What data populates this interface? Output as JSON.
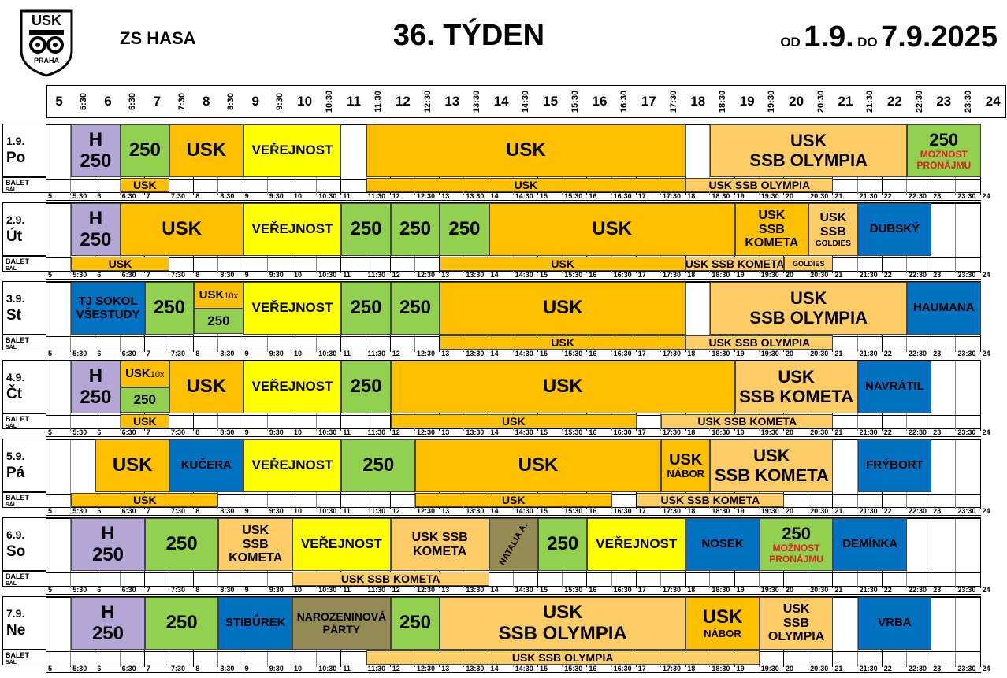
{
  "header": {
    "logo_text_top": "USK",
    "logo_text_bottom": "PRAHA",
    "club": "ZS HASA",
    "week": "36. TÝDEN",
    "range_od": "OD",
    "range_from": "1.9.",
    "range_do": "DO",
    "range_to": "7.9.2025"
  },
  "hours": [
    "5",
    "5:30",
    "6",
    "6:30",
    "7",
    "7:30",
    "8",
    "8:30",
    "9",
    "9:30",
    "10",
    "10:30",
    "11",
    "11:30",
    "12",
    "12:30",
    "13",
    "13:30",
    "14",
    "14:30",
    "15",
    "15:30",
    "16",
    "16:30",
    "17",
    "17:30",
    "18",
    "18:30",
    "19",
    "19:30",
    "20",
    "20:30",
    "21",
    "21:30",
    "22",
    "22:30",
    "23",
    "23:30",
    "24"
  ],
  "sub_label_1": "BALET",
  "sub_label_2": "SÁL",
  "colors": {
    "orange": "#ffc000",
    "light_orange": "#ffcc66",
    "yellow": "#ffff00",
    "green": "#92d050",
    "purple": "#b4a7d6",
    "blue": "#0070c0",
    "olive": "#948a54"
  },
  "days": [
    {
      "date": "1.9.",
      "name": "Po",
      "blocks": [
        {
          "s": 1,
          "e": 3,
          "c": "purple",
          "lines": [
            "H",
            "250"
          ],
          "fs": 24
        },
        {
          "s": 3,
          "e": 5,
          "c": "green",
          "lines": [
            "250"
          ],
          "fs": 24
        },
        {
          "s": 5,
          "e": 8,
          "c": "orange",
          "lines": [
            "USK"
          ],
          "fs": 24
        },
        {
          "s": 8,
          "e": 12,
          "c": "yellow",
          "lines": [
            "VEŘEJNOST"
          ],
          "fs": 17
        },
        {
          "s": 13,
          "e": 26,
          "c": "orange",
          "lines": [
            "USK"
          ],
          "fs": 24
        },
        {
          "s": 27,
          "e": 35,
          "c": "light_orange",
          "lines": [
            "USK",
            "SSB OLYMPIA"
          ],
          "fs": 22
        },
        {
          "s": 35,
          "e": 38,
          "c": "green",
          "lines": [
            "250"
          ],
          "fs": 22,
          "red": [
            "MOŽNOST",
            "PRONÁJMU"
          ]
        }
      ],
      "sub": [
        {
          "s": 3,
          "e": 5,
          "c": "orange",
          "t": "USK"
        },
        {
          "s": 13,
          "e": 26,
          "c": "orange",
          "t": "USK"
        },
        {
          "s": 26,
          "e": 32,
          "c": "light_orange",
          "t": "USK SSB OLYMPIA"
        }
      ]
    },
    {
      "date": "2.9.",
      "name": "Út",
      "blocks": [
        {
          "s": 1,
          "e": 3,
          "c": "purple",
          "lines": [
            "H",
            "250"
          ],
          "fs": 24
        },
        {
          "s": 3,
          "e": 8,
          "c": "orange",
          "lines": [
            "USK"
          ],
          "fs": 24
        },
        {
          "s": 8,
          "e": 12,
          "c": "yellow",
          "lines": [
            "VEŘEJNOST"
          ],
          "fs": 17
        },
        {
          "s": 12,
          "e": 14,
          "c": "green",
          "lines": [
            "250"
          ],
          "fs": 24
        },
        {
          "s": 14,
          "e": 16,
          "c": "green",
          "lines": [
            "250"
          ],
          "fs": 24
        },
        {
          "s": 16,
          "e": 18,
          "c": "green",
          "lines": [
            "250"
          ],
          "fs": 24
        },
        {
          "s": 18,
          "e": 28,
          "c": "orange",
          "lines": [
            "USK"
          ],
          "fs": 24
        },
        {
          "s": 28,
          "e": 31,
          "c": "orange",
          "lines": [
            "USK",
            "SSB",
            "KOMETA"
          ],
          "fs": 16
        },
        {
          "s": 31,
          "e": 33,
          "c": "light_orange",
          "lines": [
            "USK",
            "SSB"
          ],
          "fs": 16,
          "small": "GOLDIES"
        },
        {
          "s": 33,
          "e": 36,
          "c": "blue",
          "lines": [
            "DUBSKÝ"
          ],
          "fs": 15
        }
      ],
      "sub": [
        {
          "s": 1,
          "e": 5,
          "c": "orange",
          "t": "USK"
        },
        {
          "s": 16,
          "e": 26,
          "c": "orange",
          "t": "USK"
        },
        {
          "s": 26,
          "e": 30,
          "c": "light_orange",
          "t": "USK SSB KOMETA"
        },
        {
          "s": 30,
          "e": 32,
          "c": "light_orange",
          "t": "GOLDIES",
          "fs": 9
        }
      ]
    },
    {
      "date": "3.9.",
      "name": "St",
      "blocks": [
        {
          "s": 1,
          "e": 4,
          "c": "blue",
          "lines": [
            "TJ SOKOL",
            "VŠESTUDY"
          ],
          "fs": 15
        },
        {
          "s": 4,
          "e": 6,
          "c": "green",
          "lines": [
            "250"
          ],
          "fs": 24
        },
        {
          "s": 6,
          "e": 8,
          "c": "orange",
          "lines": [
            "USK"
          ],
          "fs": 15,
          "half": "top",
          "small_inline": "10x"
        },
        {
          "s": 6,
          "e": 8,
          "c": "green",
          "lines": [
            "250"
          ],
          "fs": 17,
          "half": "bottom"
        },
        {
          "s": 8,
          "e": 12,
          "c": "yellow",
          "lines": [
            "VEŘEJNOST"
          ],
          "fs": 17
        },
        {
          "s": 12,
          "e": 14,
          "c": "green",
          "lines": [
            "250"
          ],
          "fs": 24
        },
        {
          "s": 14,
          "e": 16,
          "c": "green",
          "lines": [
            "250"
          ],
          "fs": 24
        },
        {
          "s": 16,
          "e": 26,
          "c": "orange",
          "lines": [
            "USK"
          ],
          "fs": 24
        },
        {
          "s": 27,
          "e": 35,
          "c": "light_orange",
          "lines": [
            "USK",
            "SSB OLYMPIA"
          ],
          "fs": 22
        },
        {
          "s": 35,
          "e": 38,
          "c": "blue",
          "lines": [
            "HAUMANA"
          ],
          "fs": 15
        }
      ],
      "sub": [
        {
          "s": 16,
          "e": 26,
          "c": "orange",
          "t": "USK"
        },
        {
          "s": 26,
          "e": 32,
          "c": "light_orange",
          "t": "USK SSB OLYMPIA"
        }
      ]
    },
    {
      "date": "4.9.",
      "name": "Čt",
      "blocks": [
        {
          "s": 1,
          "e": 3,
          "c": "purple",
          "lines": [
            "H",
            "250"
          ],
          "fs": 24
        },
        {
          "s": 3,
          "e": 5,
          "c": "orange",
          "lines": [
            "USK"
          ],
          "fs": 15,
          "half": "top",
          "small_inline": "10x"
        },
        {
          "s": 3,
          "e": 5,
          "c": "green",
          "lines": [
            "250"
          ],
          "fs": 17,
          "half": "bottom"
        },
        {
          "s": 5,
          "e": 8,
          "c": "orange",
          "lines": [
            "USK"
          ],
          "fs": 24
        },
        {
          "s": 8,
          "e": 12,
          "c": "yellow",
          "lines": [
            "VEŘEJNOST"
          ],
          "fs": 17
        },
        {
          "s": 12,
          "e": 14,
          "c": "green",
          "lines": [
            "250"
          ],
          "fs": 24
        },
        {
          "s": 14,
          "e": 28,
          "c": "orange",
          "lines": [
            "USK"
          ],
          "fs": 24
        },
        {
          "s": 28,
          "e": 33,
          "c": "light_orange",
          "lines": [
            "USK",
            "SSB KOMETA"
          ],
          "fs": 22
        },
        {
          "s": 33,
          "e": 36,
          "c": "blue",
          "lines": [
            "NAVRÁTIL"
          ],
          "fs": 15
        }
      ],
      "sub": [
        {
          "s": 3,
          "e": 5,
          "c": "orange",
          "t": "USK"
        },
        {
          "s": 14,
          "e": 24,
          "c": "orange",
          "t": "USK"
        },
        {
          "s": 25,
          "e": 32,
          "c": "light_orange",
          "t": "USK SSB KOMETA"
        }
      ]
    },
    {
      "date": "5.9.",
      "name": "Pá",
      "blocks": [
        {
          "s": 2,
          "e": 5,
          "c": "orange",
          "lines": [
            "USK"
          ],
          "fs": 24
        },
        {
          "s": 5,
          "e": 8,
          "c": "blue",
          "lines": [
            "KUČERA"
          ],
          "fs": 15
        },
        {
          "s": 8,
          "e": 12,
          "c": "yellow",
          "lines": [
            "VEŘEJNOST"
          ],
          "fs": 17
        },
        {
          "s": 12,
          "e": 15,
          "c": "green",
          "lines": [
            "250"
          ],
          "fs": 24
        },
        {
          "s": 15,
          "e": 25,
          "c": "orange",
          "lines": [
            "USK"
          ],
          "fs": 24
        },
        {
          "s": 25,
          "e": 27,
          "c": "orange",
          "lines": [
            "USK"
          ],
          "fs": 20,
          "small": "NÁBOR"
        },
        {
          "s": 27,
          "e": 32,
          "c": "light_orange",
          "lines": [
            "USK",
            "SSB KOMETA"
          ],
          "fs": 22
        },
        {
          "s": 33,
          "e": 36,
          "c": "blue",
          "lines": [
            "FRÝBORT"
          ],
          "fs": 15
        }
      ],
      "sub": [
        {
          "s": 1,
          "e": 7,
          "c": "orange",
          "t": "USK"
        },
        {
          "s": 15,
          "e": 23,
          "c": "orange",
          "t": "USK"
        },
        {
          "s": 24,
          "e": 30,
          "c": "light_orange",
          "t": "USK SSB KOMETA"
        }
      ]
    },
    {
      "date": "6.9.",
      "name": "So",
      "blocks": [
        {
          "s": 1,
          "e": 4,
          "c": "purple",
          "lines": [
            "H",
            "250"
          ],
          "fs": 24
        },
        {
          "s": 4,
          "e": 7,
          "c": "green",
          "lines": [
            "250"
          ],
          "fs": 24
        },
        {
          "s": 7,
          "e": 10,
          "c": "light_orange",
          "lines": [
            "USK",
            "SSB",
            "KOMETA"
          ],
          "fs": 16
        },
        {
          "s": 10,
          "e": 14,
          "c": "yellow",
          "lines": [
            "VEŘEJNOST"
          ],
          "fs": 17
        },
        {
          "s": 14,
          "e": 18,
          "c": "light_orange",
          "lines": [
            "USK SSB",
            "KOMETA"
          ],
          "fs": 16
        },
        {
          "s": 18,
          "e": 20,
          "c": "olive",
          "lines": [
            "NATALIA A."
          ],
          "fs": 11,
          "rotate": true
        },
        {
          "s": 20,
          "e": 22,
          "c": "green",
          "lines": [
            "250"
          ],
          "fs": 24
        },
        {
          "s": 22,
          "e": 26,
          "c": "yellow",
          "lines": [
            "VEŘEJNOST"
          ],
          "fs": 17
        },
        {
          "s": 26,
          "e": 29,
          "c": "blue",
          "lines": [
            "NOSEK"
          ],
          "fs": 15
        },
        {
          "s": 29,
          "e": 32,
          "c": "green",
          "lines": [
            "250"
          ],
          "fs": 22,
          "red": [
            "MOŽNOST",
            "PRONÁJMU"
          ]
        },
        {
          "s": 32,
          "e": 35,
          "c": "blue",
          "lines": [
            "DEMÍNKA"
          ],
          "fs": 15
        }
      ],
      "sub": [
        {
          "s": 10,
          "e": 18,
          "c": "light_orange",
          "t": "USK SSB KOMETA"
        }
      ]
    },
    {
      "date": "7.9.",
      "name": "Ne",
      "blocks": [
        {
          "s": 1,
          "e": 4,
          "c": "purple",
          "lines": [
            "H",
            "250"
          ],
          "fs": 24
        },
        {
          "s": 4,
          "e": 7,
          "c": "green",
          "lines": [
            "250"
          ],
          "fs": 24
        },
        {
          "s": 7,
          "e": 10,
          "c": "blue",
          "lines": [
            "STIBŮREK"
          ],
          "fs": 15
        },
        {
          "s": 10,
          "e": 14,
          "c": "olive",
          "lines": [
            "NAROZENINOVÁ",
            "PÁRTY"
          ],
          "fs": 14
        },
        {
          "s": 14,
          "e": 16,
          "c": "green",
          "lines": [
            "250"
          ],
          "fs": 24
        },
        {
          "s": 16,
          "e": 26,
          "c": "light_orange",
          "lines": [
            "USK",
            "SSB OLYMPIA"
          ],
          "fs": 24
        },
        {
          "s": 26,
          "e": 29,
          "c": "orange",
          "lines": [
            "USK"
          ],
          "fs": 24,
          "small": "NÁBOR"
        },
        {
          "s": 29,
          "e": 32,
          "c": "light_orange",
          "lines": [
            "USK",
            "SSB",
            "OLYMPIA"
          ],
          "fs": 16
        },
        {
          "s": 33,
          "e": 36,
          "c": "blue",
          "lines": [
            "VRBA"
          ],
          "fs": 15
        }
      ],
      "sub": [
        {
          "s": 13,
          "e": 29,
          "c": "light_orange",
          "t": "USK SSB OLYMPIA"
        }
      ]
    }
  ]
}
